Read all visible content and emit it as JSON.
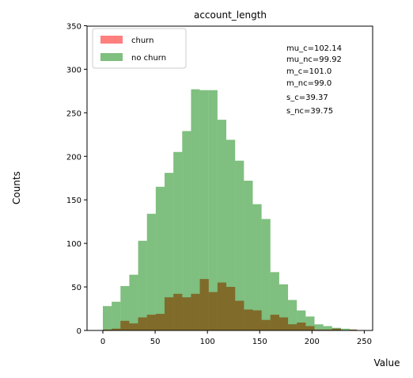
{
  "chart_data": {
    "type": "bar",
    "title": "account_length",
    "xlabel": "Value",
    "ylabel": "Counts",
    "xlim": [
      -10,
      255
    ],
    "ylim": [
      0,
      350
    ],
    "xticks": [
      0,
      50,
      100,
      150,
      200,
      250
    ],
    "yticks": [
      0,
      50,
      100,
      150,
      200,
      250,
      300,
      350
    ],
    "bin_width": 8.43,
    "legend_position": "top-left",
    "series": [
      {
        "name": "churn",
        "color": "#ff0000",
        "alpha": 0.5,
        "bins": [
          {
            "x0": 0.0,
            "x1": 8.43,
            "value": 1
          },
          {
            "x0": 8.43,
            "x1": 16.87,
            "value": 2
          },
          {
            "x0": 16.87,
            "x1": 25.3,
            "value": 11
          },
          {
            "x0": 25.3,
            "x1": 33.73,
            "value": 8
          },
          {
            "x0": 33.73,
            "x1": 42.17,
            "value": 15
          },
          {
            "x0": 42.17,
            "x1": 50.6,
            "value": 18
          },
          {
            "x0": 50.6,
            "x1": 59.03,
            "value": 19
          },
          {
            "x0": 59.03,
            "x1": 67.47,
            "value": 38
          },
          {
            "x0": 67.47,
            "x1": 75.9,
            "value": 42
          },
          {
            "x0": 75.9,
            "x1": 84.33,
            "value": 38
          },
          {
            "x0": 84.33,
            "x1": 92.77,
            "value": 42
          },
          {
            "x0": 92.77,
            "x1": 101.2,
            "value": 59
          },
          {
            "x0": 101.2,
            "x1": 109.63,
            "value": 44
          },
          {
            "x0": 109.63,
            "x1": 118.07,
            "value": 55
          },
          {
            "x0": 118.07,
            "x1": 126.5,
            "value": 50
          },
          {
            "x0": 126.5,
            "x1": 134.93,
            "value": 34
          },
          {
            "x0": 134.93,
            "x1": 143.37,
            "value": 24
          },
          {
            "x0": 143.37,
            "x1": 151.8,
            "value": 23
          },
          {
            "x0": 151.8,
            "x1": 160.23,
            "value": 12
          },
          {
            "x0": 160.23,
            "x1": 168.67,
            "value": 18
          },
          {
            "x0": 168.67,
            "x1": 177.1,
            "value": 15
          },
          {
            "x0": 177.1,
            "x1": 185.53,
            "value": 7
          },
          {
            "x0": 185.53,
            "x1": 193.97,
            "value": 9
          },
          {
            "x0": 193.97,
            "x1": 202.4,
            "value": 5
          },
          {
            "x0": 202.4,
            "x1": 210.83,
            "value": 1
          },
          {
            "x0": 210.83,
            "x1": 219.27,
            "value": 1
          },
          {
            "x0": 219.27,
            "x1": 227.7,
            "value": 2
          },
          {
            "x0": 227.7,
            "x1": 236.13,
            "value": 0
          },
          {
            "x0": 236.13,
            "x1": 243.0,
            "value": 1
          }
        ]
      },
      {
        "name": "no churn",
        "color": "#008000",
        "alpha": 0.5,
        "bins": [
          {
            "x0": 0.0,
            "x1": 8.43,
            "value": 28
          },
          {
            "x0": 8.43,
            "x1": 16.87,
            "value": 33
          },
          {
            "x0": 16.87,
            "x1": 25.3,
            "value": 51
          },
          {
            "x0": 25.3,
            "x1": 33.73,
            "value": 64
          },
          {
            "x0": 33.73,
            "x1": 42.17,
            "value": 103
          },
          {
            "x0": 42.17,
            "x1": 50.6,
            "value": 134
          },
          {
            "x0": 50.6,
            "x1": 59.03,
            "value": 165
          },
          {
            "x0": 59.03,
            "x1": 67.47,
            "value": 181
          },
          {
            "x0": 67.47,
            "x1": 75.9,
            "value": 205
          },
          {
            "x0": 75.9,
            "x1": 84.33,
            "value": 229
          },
          {
            "x0": 84.33,
            "x1": 92.77,
            "value": 277
          },
          {
            "x0": 92.77,
            "x1": 101.2,
            "value": 276
          },
          {
            "x0": 101.2,
            "x1": 109.63,
            "value": 276
          },
          {
            "x0": 109.63,
            "x1": 118.07,
            "value": 242
          },
          {
            "x0": 118.07,
            "x1": 126.5,
            "value": 219
          },
          {
            "x0": 126.5,
            "x1": 134.93,
            "value": 195
          },
          {
            "x0": 134.93,
            "x1": 143.37,
            "value": 172
          },
          {
            "x0": 143.37,
            "x1": 151.8,
            "value": 145
          },
          {
            "x0": 151.8,
            "x1": 160.23,
            "value": 128
          },
          {
            "x0": 160.23,
            "x1": 168.67,
            "value": 67
          },
          {
            "x0": 168.67,
            "x1": 177.1,
            "value": 53
          },
          {
            "x0": 177.1,
            "x1": 185.53,
            "value": 35
          },
          {
            "x0": 185.53,
            "x1": 193.97,
            "value": 23
          },
          {
            "x0": 193.97,
            "x1": 202.4,
            "value": 16
          },
          {
            "x0": 202.4,
            "x1": 210.83,
            "value": 7
          },
          {
            "x0": 210.83,
            "x1": 219.27,
            "value": 5
          },
          {
            "x0": 219.27,
            "x1": 227.7,
            "value": 3
          },
          {
            "x0": 227.7,
            "x1": 236.13,
            "value": 2
          },
          {
            "x0": 236.13,
            "x1": 243.0,
            "value": 1
          }
        ]
      }
    ],
    "overlap_color": "#806b2a",
    "legend": [
      {
        "label": "churn",
        "color": "#ff7f7f"
      },
      {
        "label": "no churn",
        "color": "#7fbf7f"
      }
    ],
    "annotations": [
      "mu_c=102.14",
      "mu_nc=99.92",
      "m_c=101.0",
      "m_nc=99.0",
      "s_c=39.37",
      "s_nc=39.75"
    ]
  }
}
